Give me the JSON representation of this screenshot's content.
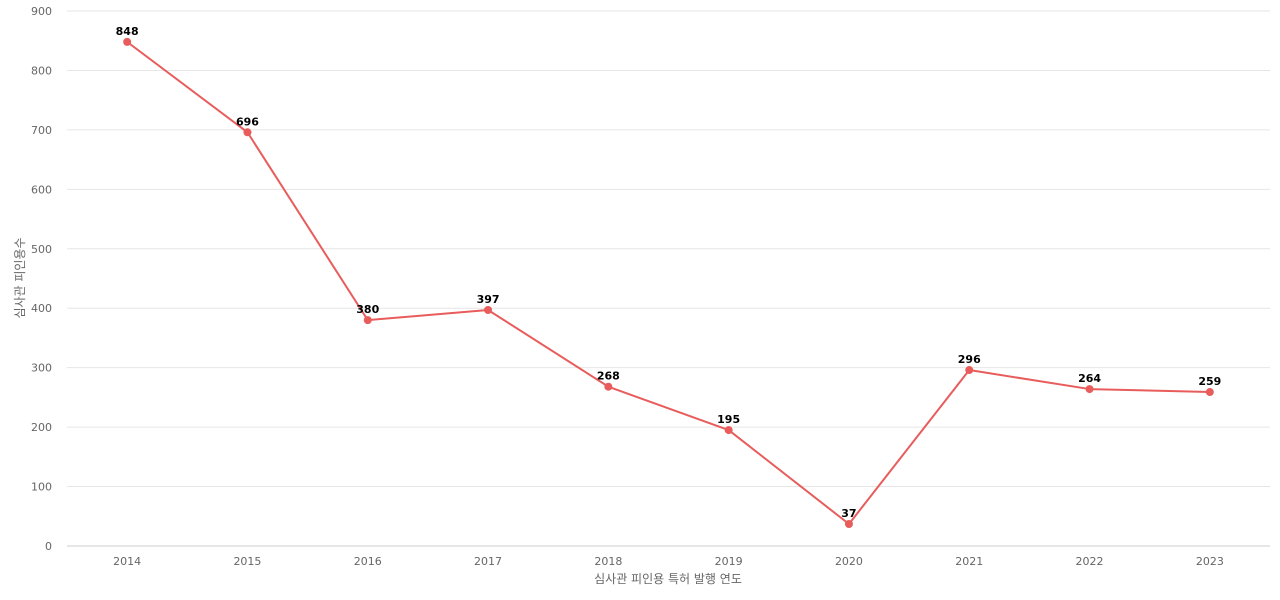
{
  "chart_data": {
    "type": "line",
    "x": [
      "2014",
      "2015",
      "2016",
      "2017",
      "2018",
      "2019",
      "2020",
      "2021",
      "2022",
      "2023"
    ],
    "series": [
      {
        "values": [
          848,
          696,
          380,
          397,
          268,
          195,
          37,
          296,
          264,
          259
        ]
      }
    ],
    "xlabel": "심사관 피인용 특허 발행 연도",
    "ylabel": "심사관 피인용수",
    "ylim": [
      0,
      900
    ],
    "yticks": [
      0,
      100,
      200,
      300,
      400,
      500,
      600,
      700,
      800,
      900
    ],
    "grid": true,
    "data_labels": true,
    "color": "#e85c5c"
  }
}
